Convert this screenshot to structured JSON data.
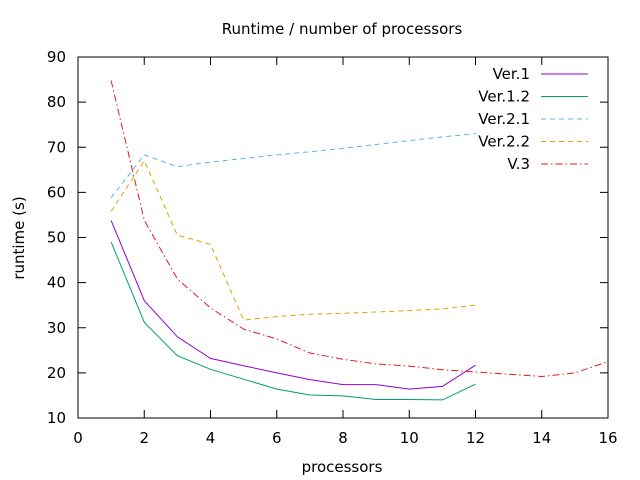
{
  "chart_data": {
    "type": "line",
    "title": "Runtime / number of processors",
    "xlabel": "processors",
    "ylabel": "runtime (s)",
    "xlim": [
      0,
      16
    ],
    "ylim": [
      10,
      90
    ],
    "xticks": [
      0,
      2,
      4,
      6,
      8,
      10,
      12,
      14,
      16
    ],
    "yticks": [
      10,
      20,
      30,
      40,
      50,
      60,
      70,
      80,
      90
    ],
    "grid": false,
    "legend": "top-right",
    "series": [
      {
        "name": "Ver.1",
        "color": "#9400d3",
        "dash": "solid",
        "x": [
          1,
          2,
          3,
          4,
          5,
          6,
          7,
          8,
          9,
          10,
          11,
          12
        ],
        "y": [
          53.8,
          36.0,
          28.0,
          23.2,
          21.6,
          20.0,
          18.5,
          17.4,
          17.4,
          16.4,
          17.0,
          21.7
        ]
      },
      {
        "name": "Ver.1.2",
        "color": "#009e73",
        "dash": "solid",
        "x": [
          1,
          2,
          3,
          4,
          5,
          6,
          7,
          8,
          9,
          10,
          11,
          12
        ],
        "y": [
          49.0,
          31.2,
          23.8,
          20.8,
          18.6,
          16.4,
          15.1,
          14.9,
          14.1,
          14.1,
          14.0,
          17.5
        ]
      },
      {
        "name": "Ver.2.1",
        "color": "#56b4e9",
        "dash": "dash",
        "x": [
          1,
          2,
          3,
          4,
          5,
          6,
          7,
          8,
          9,
          10,
          11,
          12
        ],
        "y": [
          58.8,
          68.3,
          65.7,
          66.7,
          67.5,
          68.3,
          69.0,
          69.8,
          70.6,
          71.5,
          72.3,
          73.0
        ]
      },
      {
        "name": "Ver.2.2",
        "color": "#e69f00",
        "dash": "dash",
        "x": [
          1,
          2,
          3,
          4,
          5,
          6,
          7,
          8,
          9,
          10,
          11,
          12
        ],
        "y": [
          55.8,
          67.0,
          50.5,
          48.5,
          31.7,
          32.5,
          33.0,
          33.2,
          33.5,
          33.8,
          34.2,
          35.0
        ]
      },
      {
        "name": "V.3",
        "color": "#e41a1c",
        "dash": "dashdot",
        "x": [
          1,
          2,
          3,
          4,
          5,
          6,
          7,
          8,
          9,
          10,
          11,
          12,
          13,
          14,
          15,
          16
        ],
        "y": [
          84.8,
          53.8,
          40.8,
          34.4,
          29.7,
          27.5,
          24.4,
          23.0,
          22.0,
          21.5,
          20.7,
          20.2,
          19.7,
          19.2,
          20.0,
          22.5
        ]
      }
    ]
  }
}
